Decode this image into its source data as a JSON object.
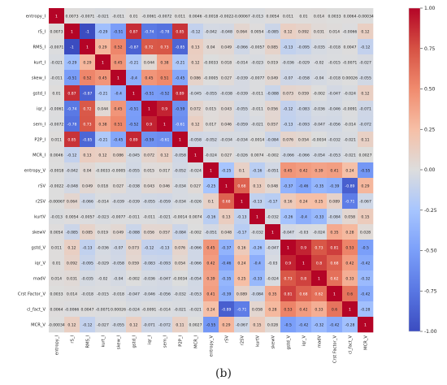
{
  "figure": {
    "caption": "(b)"
  },
  "chart_data": {
    "type": "heatmap",
    "title": "",
    "labels": [
      "entropy_I",
      "rS_I",
      "RMS_I",
      "kurt_I",
      "skew_I",
      "gstd_I",
      "iqr_I",
      "sem_I",
      "P2P_I",
      "MCR_I",
      "entropy_V",
      "rSV",
      "r2SV",
      "kurtV",
      "skewV",
      "gstd_V",
      "iqr_V",
      "madV",
      "Crst Factor_V",
      "cl_fact_V",
      "MCR_V"
    ],
    "values": [
      [
        1,
        0.0073,
        -0.0071,
        -0.021,
        -0.011,
        0.01,
        -0.0061,
        -0.0072,
        0.011,
        0.0046,
        -0.0018,
        -0.0022,
        -0.00067,
        -0.013,
        0.0054,
        0.011,
        0.01,
        0.014,
        0.0033,
        0.0064,
        -0.00034
      ],
      [
        0.0073,
        1,
        -1,
        -0.29,
        -0.51,
        0.87,
        -0.74,
        -0.78,
        0.85,
        -0.12,
        -0.042,
        -0.048,
        0.064,
        0.0054,
        -0.085,
        0.12,
        0.092,
        0.031,
        0.014,
        -0.0066,
        0.12
      ],
      [
        -0.0071,
        -1,
        1,
        0.29,
        0.52,
        -0.87,
        0.72,
        0.73,
        -0.85,
        0.13,
        0.04,
        0.049,
        -0.066,
        -0.0057,
        0.085,
        -0.13,
        -0.095,
        -0.035,
        -0.018,
        0.0047,
        -0.12
      ],
      [
        -0.021,
        -0.29,
        0.29,
        1,
        0.45,
        -0.21,
        0.044,
        0.38,
        -0.21,
        0.12,
        -0.0033,
        0.018,
        -0.014,
        -0.023,
        0.019,
        -0.036,
        -0.029,
        -0.02,
        -0.015,
        -0.0071,
        -0.027
      ],
      [
        -0.011,
        -0.51,
        0.52,
        0.45,
        1,
        -0.4,
        0.45,
        0.51,
        -0.45,
        0.086,
        -0.0005,
        0.027,
        -0.039,
        -0.0077,
        0.049,
        -0.07,
        -0.058,
        -0.04,
        -0.018,
        0.00026,
        -0.055
      ],
      [
        0.01,
        0.87,
        -0.87,
        -0.21,
        -0.4,
        1,
        -0.51,
        -0.52,
        0.89,
        -0.045,
        -0.055,
        -0.038,
        -0.039,
        -0.011,
        -0.088,
        0.073,
        0.059,
        -0.002,
        -0.047,
        -0.024,
        0.12
      ],
      [
        -0.0061,
        -0.74,
        0.72,
        0.044,
        0.45,
        -0.51,
        1,
        0.9,
        -0.59,
        0.072,
        0.015,
        0.043,
        -0.055,
        -0.011,
        0.056,
        -0.12,
        -0.083,
        -0.036,
        -0.046,
        -0.0091,
        -0.071
      ],
      [
        -0.0072,
        -0.78,
        0.73,
        0.38,
        0.51,
        -0.52,
        0.9,
        1,
        -0.61,
        0.12,
        0.017,
        0.046,
        -0.059,
        -0.021,
        0.057,
        -0.13,
        -0.093,
        -0.047,
        -0.056,
        -0.014,
        -0.072
      ],
      [
        0.011,
        0.85,
        -0.85,
        -0.21,
        -0.45,
        0.89,
        -0.59,
        -0.61,
        1,
        -0.058,
        -0.052,
        -0.034,
        -0.034,
        -0.0014,
        -0.084,
        0.076,
        0.054,
        -0.0034,
        -0.032,
        -0.021,
        0.11
      ],
      [
        0.0046,
        -0.12,
        0.13,
        0.12,
        0.086,
        -0.045,
        0.072,
        0.12,
        -0.058,
        1,
        -0.024,
        0.027,
        -0.026,
        0.0074,
        -0.002,
        -0.066,
        -0.066,
        -0.054,
        -0.053,
        -0.021,
        0.0027
      ],
      [
        -0.0018,
        -0.042,
        0.04,
        -0.0033,
        -0.0005,
        -0.055,
        0.015,
        0.017,
        -0.052,
        -0.024,
        1,
        -0.25,
        0.1,
        -0.16,
        -0.051,
        0.45,
        0.42,
        0.39,
        0.41,
        0.24,
        -0.55
      ],
      [
        -0.0022,
        -0.048,
        0.049,
        0.018,
        0.027,
        -0.038,
        0.043,
        0.046,
        -0.034,
        0.027,
        -0.25,
        1,
        0.68,
        0.13,
        0.048,
        -0.37,
        -0.46,
        -0.35,
        -0.39,
        -0.89,
        0.29
      ],
      [
        -0.00067,
        0.064,
        -0.066,
        -0.014,
        -0.039,
        -0.039,
        -0.055,
        -0.059,
        -0.034,
        -0.026,
        0.1,
        0.68,
        1,
        -0.13,
        -0.17,
        0.16,
        0.24,
        0.25,
        0.089,
        -0.71,
        -0.067
      ],
      [
        -0.013,
        0.0054,
        -0.0057,
        -0.023,
        -0.0077,
        -0.011,
        -0.011,
        -0.021,
        -0.0014,
        0.0074,
        -0.16,
        0.13,
        -0.13,
        1,
        -0.032,
        -0.26,
        -0.4,
        -0.33,
        -0.084,
        0.058,
        0.15
      ],
      [
        0.0054,
        -0.085,
        0.085,
        0.019,
        0.049,
        -0.088,
        0.056,
        0.057,
        -0.084,
        -0.002,
        -0.051,
        0.048,
        -0.17,
        -0.032,
        1,
        -0.047,
        -0.03,
        -0.024,
        0.35,
        0.28,
        0.028
      ],
      [
        0.011,
        0.12,
        -0.13,
        -0.036,
        -0.07,
        0.073,
        -0.12,
        -0.13,
        0.076,
        -0.066,
        0.45,
        -0.37,
        0.16,
        -0.26,
        -0.047,
        1,
        0.9,
        0.73,
        0.81,
        0.53,
        -0.5
      ],
      [
        0.01,
        0.092,
        -0.095,
        -0.029,
        -0.058,
        0.059,
        -0.083,
        -0.093,
        0.054,
        -0.066,
        0.42,
        -0.46,
        0.24,
        -0.4,
        -0.03,
        0.9,
        1,
        0.8,
        0.68,
        0.42,
        -0.42
      ],
      [
        0.014,
        0.031,
        -0.035,
        -0.02,
        -0.04,
        -0.002,
        -0.036,
        -0.047,
        -0.0034,
        -0.054,
        0.39,
        -0.35,
        0.25,
        -0.33,
        -0.024,
        0.73,
        0.8,
        1,
        0.62,
        0.33,
        -0.32
      ],
      [
        0.0033,
        0.014,
        -0.018,
        -0.015,
        -0.018,
        -0.047,
        -0.046,
        -0.056,
        -0.032,
        -0.053,
        0.41,
        -0.39,
        0.089,
        -0.084,
        0.35,
        0.81,
        0.68,
        0.62,
        1,
        0.6,
        -0.42
      ],
      [
        0.0064,
        -0.0066,
        0.0047,
        -0.0071,
        0.00026,
        -0.024,
        -0.0091,
        -0.014,
        -0.021,
        -0.021,
        0.24,
        -0.89,
        -0.71,
        0.058,
        0.28,
        0.53,
        0.42,
        0.33,
        0.6,
        1,
        -0.28
      ],
      [
        -0.00034,
        0.12,
        -0.12,
        -0.027,
        -0.055,
        0.12,
        -0.071,
        -0.072,
        0.11,
        0.0027,
        -0.55,
        0.29,
        -0.067,
        0.15,
        0.028,
        -0.5,
        -0.42,
        -0.32,
        -0.42,
        -0.28,
        1
      ]
    ],
    "colorbar": {
      "min": -1,
      "max": 1,
      "ticks": [
        "1.00",
        "0.75",
        "0.50",
        "0.25",
        "0.00",
        "-0.25",
        "-0.50",
        "-0.75",
        "-1.00"
      ],
      "tick_values": [
        1,
        0.75,
        0.5,
        0.25,
        0,
        -0.25,
        -0.5,
        -0.75,
        -1
      ],
      "colormap": "coolwarm"
    },
    "colors": {
      "low": "#3b4cc0",
      "mid": "#dddddd",
      "high": "#b40426"
    },
    "annotations": true,
    "grid": false,
    "legend": "right"
  }
}
